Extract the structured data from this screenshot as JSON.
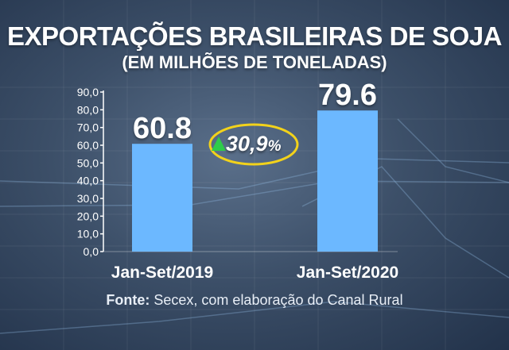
{
  "chart_data": {
    "type": "bar",
    "title": "EXPORTAÇÕES BRASILEIRAS DE SOJA",
    "subtitle": "(EM MILHÕES DE TONELADAS)",
    "categories": [
      "Jan-Set/2019",
      "Jan-Set/2020"
    ],
    "values": [
      60.8,
      79.6
    ],
    "value_labels": [
      "60.8",
      "79.6"
    ],
    "ylim": [
      0,
      90
    ],
    "yticks": [
      "0,0",
      "10,0",
      "20,0",
      "30,0",
      "40,0",
      "50,0",
      "60,0",
      "70,0",
      "80,0",
      "90,0"
    ],
    "bar_color": "#6cb8ff",
    "grid": false,
    "annotation": {
      "value": "30,9",
      "unit": "%",
      "arrow_color": "#2ecc4a",
      "ring_color": "#f2d21b"
    }
  },
  "source": {
    "label": "Fonte:",
    "text": " Secex, com elaboração do Canal Rural"
  }
}
